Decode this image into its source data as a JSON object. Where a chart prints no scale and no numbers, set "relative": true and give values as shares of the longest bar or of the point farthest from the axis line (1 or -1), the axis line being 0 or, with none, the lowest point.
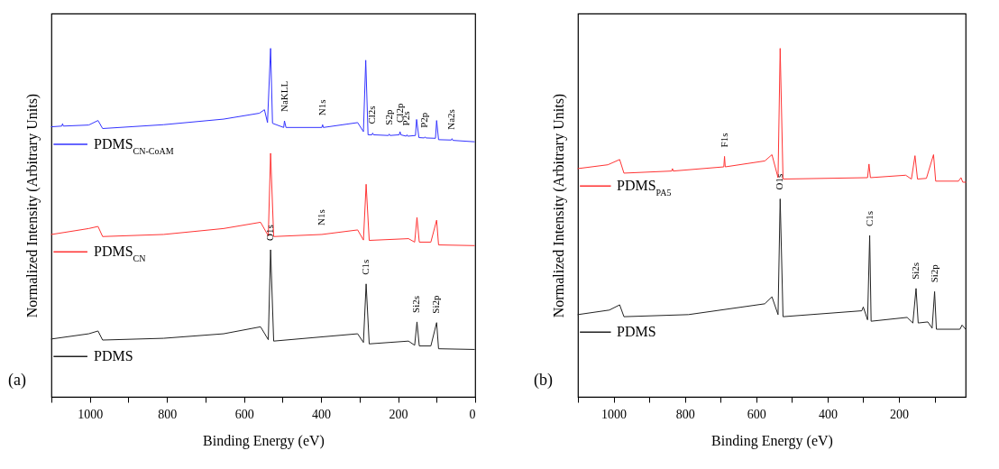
{
  "chart_data": [
    {
      "type": "line",
      "relative": true,
      "xlabel": "Binding Energy (eV)",
      "ylabel": "Normalized Intensity (Arbitrary Units)",
      "xlim": [
        1100,
        0
      ],
      "xticks": [
        {
          "value": 1100,
          "label": null
        },
        1000,
        {
          "value": 900,
          "label": null
        },
        800,
        {
          "value": 700,
          "label": null
        },
        600,
        {
          "value": 500,
          "label": null
        },
        400,
        {
          "value": 300,
          "label": null
        },
        200,
        {
          "value": 100,
          "label": null
        },
        0
      ],
      "tick_labels": "x",
      "grid": false,
      "legend": "left",
      "line_style": "solid",
      "marker": "none",
      "series": [
        {
          "name": "PDMS$_{CN-CoAM}$",
          "color": "#3333ff",
          "x": [
            1100,
            1073,
            1071,
            1069,
            1003,
            979,
            967,
            809,
            653,
            560,
            547,
            539,
            531,
            526,
            497,
            495,
            491,
            398,
            396,
            394,
            305,
            290,
            284,
            278,
            268,
            266,
            264,
            225,
            223,
            221,
            197,
            195,
            193,
            179,
            177,
            175,
            155,
            152,
            146,
            132,
            130,
            128,
            103,
            100,
            95,
            62,
            60,
            58,
            2
          ],
          "values": [
            0.775,
            0.777,
            0.784,
            0.777,
            0.78,
            0.793,
            0.77,
            0.781,
            0.797,
            0.814,
            0.824,
            0.787,
            1,
            0.785,
            0.773,
            0.792,
            0.773,
            0.773,
            0.781,
            0.773,
            0.787,
            0.761,
            0.966,
            0.752,
            0.752,
            0.757,
            0.752,
            0.75,
            0.754,
            0.75,
            0.752,
            0.761,
            0.752,
            0.748,
            0.752,
            0.748,
            0.75,
            0.796,
            0.744,
            0.743,
            0.746,
            0.743,
            0.742,
            0.793,
            0.738,
            0.737,
            0.741,
            0.736,
            0.732
          ]
        },
        {
          "name": "PDMS$_{CN}$",
          "color": "#ff3333",
          "x": [
            1100,
            1003,
            979,
            967,
            809,
            653,
            557,
            537,
            531,
            523,
            398,
            305,
            290,
            283,
            275,
            173,
            157,
            151,
            145,
            115,
            100,
            95,
            2
          ],
          "values": [
            0.466,
            0.483,
            0.489,
            0.46,
            0.466,
            0.483,
            0.501,
            0.462,
            0.699,
            0.46,
            0.466,
            0.479,
            0.45,
            0.61,
            0.449,
            0.454,
            0.444,
            0.515,
            0.444,
            0.444,
            0.507,
            0.436,
            0.434
          ]
        },
        {
          "name": "PDMS",
          "color": "#222222",
          "x": [
            1100,
            1003,
            979,
            967,
            809,
            653,
            557,
            537,
            531,
            523,
            305,
            290,
            283,
            275,
            173,
            157,
            151,
            145,
            115,
            100,
            95,
            2
          ],
          "values": [
            0.166,
            0.181,
            0.189,
            0.163,
            0.168,
            0.181,
            0.201,
            0.164,
            0.422,
            0.16,
            0.181,
            0.156,
            0.324,
            0.152,
            0.16,
            0.148,
            0.215,
            0.146,
            0.146,
            0.213,
            0.138,
            0.136
          ]
        }
      ],
      "annotations": [
        {
          "text": "NaKLL",
          "x": 495,
          "y": 0.792
        },
        {
          "text": "N1s",
          "x": 396,
          "y": 0.781
        },
        {
          "text": "Cl2s",
          "x": 266,
          "y": 0.757
        },
        {
          "text": "S2p",
          "x": 223,
          "y": 0.754
        },
        {
          "text": "Cl2p",
          "x": 195,
          "y": 0.761
        },
        {
          "text": "P2s",
          "x": 177,
          "y": 0.752
        },
        {
          "text": "P2p",
          "x": 130,
          "y": 0.746
        },
        {
          "text": "Na2s",
          "x": 60,
          "y": 0.741
        },
        {
          "text": "N1s",
          "x": 398,
          "y": 0.466
        },
        {
          "text": "O1s",
          "x": 531,
          "y": 0.422
        },
        {
          "text": "C1s",
          "x": 283,
          "y": 0.324
        },
        {
          "text": "Si2s",
          "x": 151,
          "y": 0.215
        },
        {
          "text": "Si2p",
          "x": 100,
          "y": 0.213
        },
        "(a)"
      ]
    },
    {
      "type": "line",
      "relative": true,
      "xlabel": "Binding Energy (eV)",
      "ylabel": "Normalized Intensity (Arbitrary Units)",
      "xlim": [
        1100,
        13
      ],
      "xticks": [
        {
          "value": 1100,
          "label": null
        },
        1000,
        {
          "value": 900,
          "label": null
        },
        800,
        {
          "value": 700,
          "label": null
        },
        600,
        {
          "value": 500,
          "label": null
        },
        400,
        {
          "value": 300,
          "label": null
        },
        200,
        {
          "value": 100,
          "label": null
        }
      ],
      "tick_labels": "x",
      "grid": false,
      "legend": "left",
      "line_style": "solid",
      "marker": "none",
      "series": [
        {
          "name": "PDMS$_{PA5}$",
          "color": "#ff3333",
          "x": [
            1100,
            1016,
            983,
            971,
            837,
            835,
            833,
            691,
            689,
            687,
            576,
            556,
            539,
            533,
            525,
            288,
            284,
            280,
            181,
            165,
            155,
            148,
            123,
            103,
            97,
            33,
            26,
            21,
            13
          ],
          "values": [
            0.655,
            0.666,
            0.681,
            0.642,
            0.648,
            0.655,
            0.648,
            0.66,
            0.69,
            0.66,
            0.677,
            0.695,
            0.629,
            1,
            0.625,
            0.629,
            0.668,
            0.629,
            0.636,
            0.625,
            0.692,
            0.625,
            0.627,
            0.695,
            0.619,
            0.619,
            0.629,
            0.616,
            0.616
          ]
        },
        {
          "name": "PDMS",
          "color": "#222222",
          "x": [
            1100,
            1012,
            983,
            971,
            790,
            576,
            556,
            539,
            533,
            525,
            304,
            300,
            288,
            282,
            278,
            177,
            161,
            152,
            146,
            119,
            107,
            100,
            95,
            29,
            23,
            13
          ],
          "values": [
            0.236,
            0.249,
            0.264,
            0.23,
            0.236,
            0.267,
            0.287,
            0.236,
            0.568,
            0.23,
            0.247,
            0.258,
            0.221,
            0.463,
            0.217,
            0.228,
            0.212,
            0.311,
            0.212,
            0.215,
            0.197,
            0.302,
            0.194,
            0.194,
            0.206,
            0.194
          ]
        }
      ],
      "annotations": [
        {
          "text": "F1s",
          "x": 689,
          "y": 0.69
        },
        {
          "text": "O1s",
          "x": 533,
          "y": 0.568
        },
        {
          "text": "C1s",
          "x": 282,
          "y": 0.463
        },
        {
          "text": "Si2s",
          "x": 152,
          "y": 0.311
        },
        {
          "text": "Si2p",
          "x": 100,
          "y": 0.302
        },
        "(b)"
      ]
    }
  ]
}
